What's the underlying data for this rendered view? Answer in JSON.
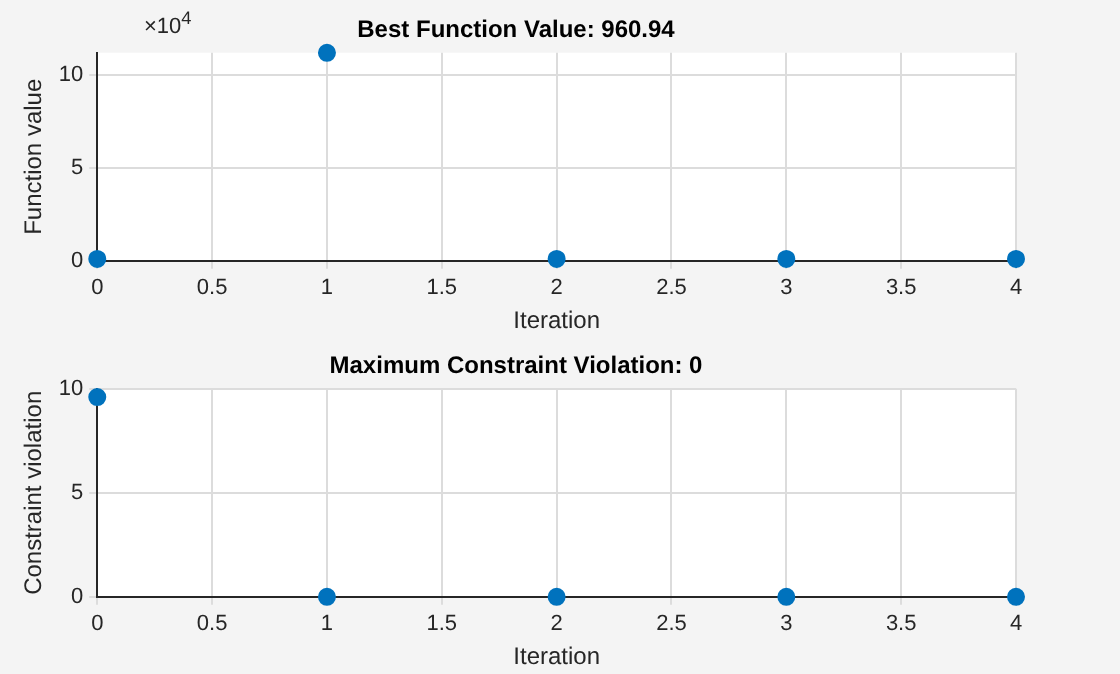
{
  "chart_data": [
    {
      "type": "scatter",
      "title": "Best Function Value: 960.94",
      "xlabel": "Iteration",
      "ylabel": "Function value",
      "annotations": [
        "×10$^{4}$"
      ],
      "color": "#0072bd",
      "marker": "circle",
      "grid": true,
      "x": [
        0,
        1,
        2,
        3,
        4
      ],
      "values": [
        0.1,
        11.2,
        0.1,
        0.1,
        0.1
      ],
      "xlim": [
        0,
        4
      ],
      "xticks": [
        0,
        0.5,
        1,
        1.5,
        2,
        2.5,
        3,
        3.5,
        4
      ],
      "ylim": [
        0,
        11.2
      ],
      "yticks": [
        0,
        5,
        10
      ]
    },
    {
      "type": "scatter",
      "title": "Maximum Constraint Violation: 0",
      "xlabel": "Iteration",
      "ylabel": "Constraint violation",
      "color": "#0072bd",
      "marker": "circle",
      "grid": true,
      "x": [
        0,
        1,
        2,
        3,
        4
      ],
      "values": [
        9.6,
        0,
        0,
        0,
        0
      ],
      "xlim": [
        0,
        4
      ],
      "xticks": [
        0,
        0.5,
        1,
        1.5,
        2,
        2.5,
        3,
        3.5,
        4
      ],
      "ylim": [
        0,
        10
      ],
      "yticks": [
        0,
        5,
        10
      ]
    }
  ]
}
